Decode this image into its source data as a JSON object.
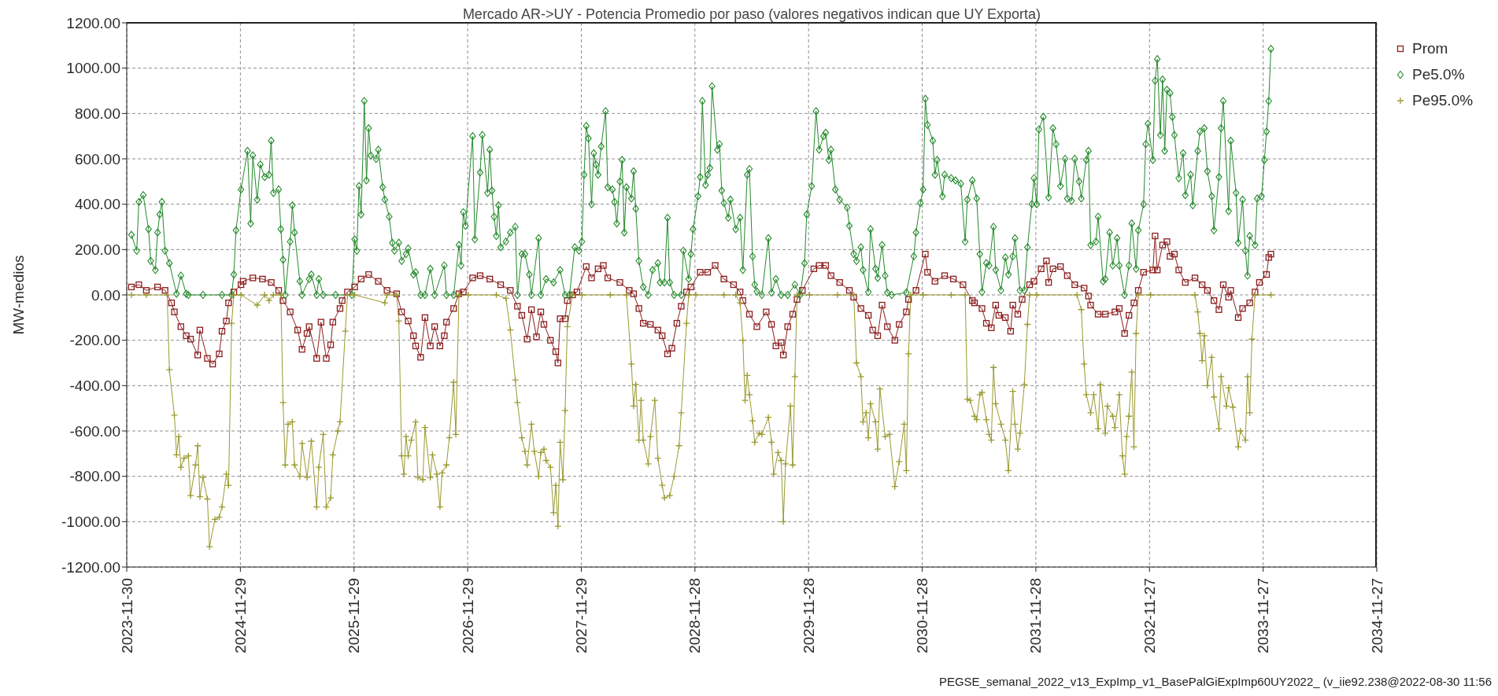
{
  "chart_data": {
    "type": "line",
    "title": "Mercado AR->UY - Potencia Promedio por paso (valores negativos indican que UY Exporta)",
    "ylabel": "MW-medios",
    "annotations": [
      "PEGSE_semanal_2022_v13_ExpImp_v1_BasePalGiExpImp60UY2022_ (v_iie92.238@2022-08-30 11:56"
    ],
    "xlim": [
      "2023-11-30",
      "2034-11-27"
    ],
    "xticks": [
      "2023-11-30",
      "2024-11-29",
      "2025-11-29",
      "2026-11-29",
      "2027-11-29",
      "2028-11-28",
      "2029-11-28",
      "2030-11-28",
      "2031-11-28",
      "2032-11-27",
      "2033-11-27",
      "2034-11-27"
    ],
    "ylim": [
      -1200,
      1200
    ],
    "yticks": [
      {
        "value": -1200,
        "label": "-1200.00"
      },
      {
        "value": -1000,
        "label": "-1000.00"
      },
      {
        "value": -800,
        "label": "-800.00"
      },
      {
        "value": -600,
        "label": "-600.00"
      },
      {
        "value": -400,
        "label": "-400.00"
      },
      {
        "value": -200,
        "label": "-200.00"
      },
      {
        "value": 0,
        "label": "0.00"
      },
      {
        "value": 200,
        "label": "200.00"
      },
      {
        "value": 400,
        "label": "400.00"
      },
      {
        "value": 600,
        "label": "600.00"
      },
      {
        "value": 800,
        "label": "800.00"
      },
      {
        "value": 1000,
        "label": "1000.00"
      },
      {
        "value": 1200,
        "label": "1200.00"
      }
    ],
    "grid": true,
    "legend": "top right",
    "series": [
      {
        "name": "Prom",
        "color": "#8b1c1c",
        "marker": "square",
        "x": [
          "2023-12-15",
          "2024-01-08",
          "2024-02-01",
          "2024-03-08",
          "2024-04-01",
          "2024-04-22",
          "2024-05-01",
          "2024-05-22",
          "2024-06-08",
          "2024-06-22",
          "2024-07-15",
          "2024-07-22",
          "2024-08-15",
          "2024-09-01",
          "2024-09-22",
          "2024-10-01",
          "2024-10-15",
          "2024-10-22",
          "2024-11-08",
          "2024-12-01",
          "2024-12-08",
          "2025-01-08",
          "2025-02-08",
          "2025-03-08",
          "2025-04-01",
          "2025-04-15",
          "2025-05-08",
          "2025-06-01",
          "2025-06-15",
          "2025-07-01",
          "2025-07-08",
          "2025-08-01",
          "2025-08-15",
          "2025-09-01",
          "2025-09-15",
          "2025-09-22",
          "2025-10-15",
          "2025-10-22",
          "2025-11-08",
          "2025-12-01",
          "2025-12-22",
          "2026-01-15",
          "2026-02-15",
          "2026-03-15",
          "2026-04-15",
          "2026-05-01",
          "2026-05-22",
          "2026-06-08",
          "2026-06-15",
          "2026-07-01",
          "2026-07-15",
          "2026-08-01",
          "2026-08-15",
          "2026-09-01",
          "2026-09-15",
          "2026-09-22",
          "2026-10-15",
          "2026-11-01",
          "2026-11-15",
          "2026-12-15",
          "2027-01-08",
          "2027-02-08",
          "2027-03-15",
          "2027-04-15",
          "2027-05-08",
          "2027-05-22",
          "2027-06-08",
          "2027-06-22",
          "2027-07-08",
          "2027-07-22",
          "2027-08-01",
          "2027-08-22",
          "2027-09-08",
          "2027-09-15",
          "2027-09-22",
          "2027-10-08",
          "2027-10-15",
          "2027-11-01",
          "2027-11-15",
          "2027-12-15",
          "2028-01-01",
          "2028-01-22",
          "2028-02-08",
          "2028-02-22",
          "2028-04-01",
          "2028-05-01",
          "2028-05-15",
          "2028-06-01",
          "2028-06-15",
          "2028-07-08",
          "2028-08-01",
          "2028-08-15",
          "2028-09-01",
          "2028-09-15",
          "2028-10-01",
          "2028-10-15",
          "2028-11-01",
          "2028-11-15",
          "2028-12-15",
          "2029-01-08",
          "2029-02-01",
          "2029-03-01",
          "2029-04-01",
          "2029-04-22",
          "2029-05-01",
          "2029-05-22",
          "2029-06-15",
          "2029-07-15",
          "2029-08-01",
          "2029-08-15",
          "2029-09-01",
          "2029-09-08",
          "2029-09-22",
          "2029-10-08",
          "2029-10-22",
          "2029-11-08",
          "2029-12-15",
          "2030-01-01",
          "2030-01-22",
          "2030-02-08",
          "2030-03-08",
          "2030-04-08",
          "2030-04-22",
          "2030-05-15",
          "2030-06-08",
          "2030-06-22",
          "2030-07-08",
          "2030-07-22",
          "2030-08-08",
          "2030-09-01",
          "2030-09-15",
          "2030-10-08",
          "2030-10-15",
          "2030-11-08",
          "2030-12-08",
          "2030-12-15",
          "2031-01-08",
          "2031-02-08",
          "2031-03-08",
          "2031-04-08",
          "2031-05-08",
          "2031-05-15",
          "2031-06-08",
          "2031-06-22",
          "2031-07-08",
          "2031-07-22",
          "2031-08-01",
          "2031-08-22",
          "2031-09-08",
          "2031-09-15",
          "2031-10-01",
          "2031-10-15",
          "2031-11-08",
          "2031-11-22",
          "2031-12-15",
          "2032-01-01",
          "2032-01-08",
          "2032-01-22",
          "2032-02-15",
          "2032-03-08",
          "2032-04-01",
          "2032-05-01",
          "2032-05-15",
          "2032-05-22",
          "2032-06-15",
          "2032-07-08",
          "2032-08-08",
          "2032-08-22",
          "2032-09-08",
          "2032-09-22",
          "2032-10-08",
          "2032-10-22",
          "2032-11-08",
          "2032-12-08",
          "2032-12-15",
          "2032-12-22",
          "2033-01-08",
          "2033-01-22",
          "2033-02-01",
          "2033-02-15",
          "2033-03-01",
          "2033-03-22",
          "2033-04-22",
          "2033-05-15",
          "2033-06-01",
          "2033-06-22",
          "2033-07-08",
          "2033-07-22",
          "2033-08-08",
          "2033-08-15",
          "2033-09-08",
          "2033-09-22",
          "2033-10-15",
          "2033-11-01",
          "2033-11-15",
          "2033-12-08",
          "2033-12-15",
          "2033-12-22"
        ],
        "values": [
          35,
          45,
          20,
          35,
          20,
          -35,
          -75,
          -140,
          -180,
          -195,
          -265,
          -155,
          -280,
          -305,
          -260,
          -160,
          -115,
          -35,
          13,
          45,
          60,
          75,
          70,
          55,
          20,
          -25,
          -75,
          -155,
          -240,
          -170,
          -140,
          -280,
          -120,
          -280,
          -220,
          -120,
          -60,
          -25,
          13,
          35,
          70,
          90,
          60,
          20,
          5,
          -75,
          -115,
          -180,
          -225,
          -275,
          -100,
          -225,
          -140,
          -225,
          -180,
          -120,
          -60,
          5,
          13,
          75,
          85,
          70,
          45,
          20,
          -50,
          -90,
          -195,
          -65,
          -185,
          -75,
          -130,
          -200,
          -250,
          -300,
          -105,
          -105,
          -25,
          0,
          13,
          125,
          75,
          115,
          130,
          75,
          55,
          20,
          5,
          -60,
          -125,
          -130,
          -155,
          -180,
          -260,
          -235,
          -125,
          -50,
          13,
          35,
          100,
          100,
          130,
          70,
          45,
          13,
          -25,
          -85,
          -140,
          -75,
          -130,
          -225,
          -210,
          -265,
          -140,
          -85,
          -20,
          20,
          115,
          130,
          130,
          85,
          55,
          20,
          -10,
          -60,
          -90,
          -155,
          -180,
          -45,
          -140,
          -200,
          -130,
          -75,
          -20,
          20,
          180,
          100,
          60,
          85,
          70,
          45,
          -25,
          -35,
          -60,
          -125,
          -145,
          -45,
          -90,
          -100,
          -160,
          -45,
          -85,
          -20,
          45,
          60,
          115,
          150,
          55,
          115,
          125,
          85,
          45,
          30,
          -5,
          -45,
          -85,
          -85,
          -75,
          -60,
          -170,
          -90,
          -35,
          20,
          100,
          110,
          260,
          110,
          220,
          235,
          170,
          180,
          110,
          55,
          75,
          45,
          20,
          -25,
          -65,
          45,
          -10,
          20,
          -100,
          -60,
          -35,
          13,
          55,
          90,
          165,
          180
        ]
      },
      {
        "name": "Pe5.0%",
        "color": "#23892a",
        "marker": "diamond",
        "x": [
          "2023-12-15",
          "2024-01-01",
          "2024-01-08",
          "2024-01-22",
          "2024-02-08",
          "2024-02-15",
          "2024-03-01",
          "2024-03-08",
          "2024-03-15",
          "2024-03-22",
          "2024-04-01",
          "2024-04-15",
          "2024-05-08",
          "2024-05-22",
          "2024-06-08",
          "2024-06-15",
          "2024-08-01",
          "2024-10-01",
          "2024-11-01",
          "2024-11-08",
          "2024-11-15",
          "2024-12-01",
          "2024-12-22",
          "2025-01-01",
          "2025-01-08",
          "2025-01-22",
          "2025-02-01",
          "2025-02-15",
          "2025-03-01",
          "2025-03-08",
          "2025-03-15",
          "2025-04-01",
          "2025-04-08",
          "2025-04-15",
          "2025-04-22",
          "2025-05-08",
          "2025-05-15",
          "2025-05-22",
          "2025-06-08",
          "2025-06-15",
          "2025-07-08",
          "2025-07-15",
          "2025-08-01",
          "2025-08-08",
          "2025-08-22",
          "2025-10-01",
          "2025-11-22",
          "2025-12-01",
          "2025-12-08",
          "2025-12-15",
          "2025-12-22",
          "2026-01-01",
          "2026-01-08",
          "2026-01-15",
          "2026-01-22",
          "2026-02-08",
          "2026-02-15",
          "2026-03-01",
          "2026-03-08",
          "2026-03-22",
          "2026-04-01",
          "2026-04-08",
          "2026-04-22",
          "2026-05-01",
          "2026-05-15",
          "2026-05-22",
          "2026-06-08",
          "2026-06-15",
          "2026-07-01",
          "2026-07-15",
          "2026-08-01",
          "2026-08-15",
          "2026-09-15",
          "2026-09-22",
          "2026-10-15",
          "2026-11-01",
          "2026-11-08",
          "2026-11-15",
          "2026-11-22",
          "2026-12-15",
          "2026-12-22",
          "2027-01-08",
          "2027-01-15",
          "2027-02-01",
          "2027-02-08",
          "2027-02-15",
          "2027-02-22",
          "2027-03-01",
          "2027-03-08",
          "2027-03-15",
          "2027-04-01",
          "2027-04-15",
          "2027-05-01",
          "2027-05-08",
          "2027-05-22",
          "2027-06-01",
          "2027-06-15",
          "2027-06-22",
          "2027-07-15",
          "2027-07-22",
          "2027-08-08",
          "2027-09-01",
          "2027-09-22",
          "2027-10-08",
          "2027-10-22",
          "2027-11-08",
          "2027-11-22",
          "2027-12-01",
          "2027-12-08",
          "2027-12-15",
          "2027-12-22",
          "2028-01-01",
          "2028-01-08",
          "2028-01-15",
          "2028-01-22",
          "2028-02-01",
          "2028-02-15",
          "2028-02-22",
          "2028-03-08",
          "2028-03-15",
          "2028-03-22",
          "2028-04-01",
          "2028-04-08",
          "2028-04-15",
          "2028-04-22",
          "2028-05-08",
          "2028-05-15",
          "2028-05-22",
          "2028-06-01",
          "2028-06-15",
          "2028-07-01",
          "2028-07-15",
          "2028-08-01",
          "2028-08-08",
          "2028-08-22",
          "2028-09-01",
          "2028-09-08",
          "2028-09-22",
          "2028-10-15",
          "2028-10-22",
          "2028-11-08",
          "2028-11-15",
          "2028-11-22",
          "2028-12-08",
          "2028-12-15",
          "2028-12-22",
          "2029-01-01",
          "2029-01-08",
          "2029-01-15",
          "2029-01-22",
          "2029-02-08",
          "2029-02-15",
          "2029-02-22",
          "2029-03-01",
          "2029-03-15",
          "2029-03-22",
          "2029-04-08",
          "2029-04-22",
          "2029-05-01",
          "2029-05-15",
          "2029-05-22",
          "2029-06-01",
          "2029-06-08",
          "2029-06-15",
          "2029-07-01",
          "2029-07-22",
          "2029-08-01",
          "2029-08-15",
          "2029-09-01",
          "2029-09-22",
          "2029-10-15",
          "2029-11-01",
          "2029-11-15",
          "2029-11-22",
          "2029-12-08",
          "2029-12-22",
          "2030-01-01",
          "2030-01-15",
          "2030-01-22",
          "2030-02-01",
          "2030-02-08",
          "2030-02-22",
          "2030-03-08",
          "2030-04-01",
          "2030-04-08",
          "2030-04-22",
          "2030-05-01",
          "2030-05-15",
          "2030-05-22",
          "2030-06-08",
          "2030-06-15",
          "2030-07-01",
          "2030-07-08",
          "2030-07-22",
          "2030-08-01",
          "2030-08-08",
          "2030-08-22",
          "2030-10-08",
          "2030-11-01",
          "2030-11-08",
          "2030-11-22",
          "2030-12-01",
          "2030-12-08",
          "2030-12-15",
          "2031-01-01",
          "2031-01-08",
          "2031-01-15",
          "2031-02-01",
          "2031-02-08",
          "2031-03-01",
          "2031-03-15",
          "2031-04-01",
          "2031-04-15",
          "2031-04-22",
          "2031-05-08",
          "2031-05-22",
          "2031-06-01",
          "2031-06-08",
          "2031-06-22",
          "2031-07-01",
          "2031-07-15",
          "2031-07-22",
          "2031-08-08",
          "2031-08-22",
          "2031-09-01",
          "2031-09-15",
          "2031-09-22",
          "2031-10-08",
          "2031-10-22",
          "2031-11-01",
          "2031-11-15",
          "2031-11-22",
          "2031-12-01",
          "2031-12-08",
          "2031-12-22",
          "2032-01-08",
          "2032-01-22",
          "2032-02-01",
          "2032-02-15",
          "2032-03-01",
          "2032-03-08",
          "2032-03-22",
          "2032-04-01",
          "2032-04-15",
          "2032-04-22",
          "2032-05-08",
          "2032-05-15",
          "2032-05-22",
          "2032-06-08",
          "2032-06-15",
          "2032-07-01",
          "2032-07-08",
          "2032-07-22",
          "2032-08-01",
          "2032-08-15",
          "2032-08-22",
          "2032-09-08",
          "2032-09-22",
          "2032-10-01",
          "2032-10-15",
          "2032-10-22",
          "2032-11-08",
          "2032-11-15",
          "2032-11-22",
          "2032-12-08",
          "2032-12-15",
          "2032-12-22",
          "2033-01-01",
          "2033-01-08",
          "2033-01-15",
          "2033-01-22",
          "2033-02-01",
          "2033-02-08",
          "2033-02-15",
          "2033-03-01",
          "2033-03-15",
          "2033-03-22",
          "2033-04-08",
          "2033-04-15",
          "2033-05-01",
          "2033-05-08",
          "2033-05-22",
          "2033-06-01",
          "2033-06-15",
          "2033-06-22",
          "2033-07-08",
          "2033-07-15",
          "2033-07-22",
          "2033-08-08",
          "2033-08-15",
          "2033-09-01",
          "2033-09-08",
          "2033-09-22",
          "2033-10-01",
          "2033-10-08",
          "2033-10-15",
          "2033-11-01",
          "2033-11-08",
          "2033-11-22",
          "2033-12-01",
          "2033-12-08",
          "2033-12-15",
          "2033-12-22"
        ],
        "values": [
          265,
          195,
          410,
          440,
          290,
          150,
          110,
          275,
          355,
          410,
          195,
          140,
          5,
          85,
          5,
          0,
          0,
          0,
          0,
          90,
          285,
          465,
          635,
          315,
          615,
          420,
          575,
          520,
          530,
          680,
          450,
          465,
          290,
          155,
          0,
          235,
          395,
          275,
          60,
          0,
          70,
          90,
          0,
          70,
          0,
          0,
          0,
          245,
          195,
          480,
          355,
          855,
          505,
          735,
          615,
          600,
          640,
          475,
          420,
          345,
          230,
          195,
          230,
          150,
          180,
          205,
          90,
          100,
          0,
          0,
          115,
          0,
          130,
          0,
          0,
          220,
          130,
          365,
          305,
          700,
          245,
          540,
          705,
          450,
          640,
          460,
          345,
          260,
          395,
          210,
          235,
          275,
          300,
          0,
          180,
          180,
          90,
          0,
          250,
          0,
          70,
          55,
          110,
          0,
          0,
          210,
          195,
          235,
          530,
          745,
          690,
          400,
          625,
          575,
          530,
          655,
          810,
          475,
          465,
          410,
          315,
          500,
          595,
          275,
          475,
          425,
          545,
          380,
          150,
          35,
          0,
          110,
          140,
          55,
          55,
          340,
          55,
          0,
          0,
          195,
          70,
          180,
          290,
          435,
          520,
          855,
          485,
          530,
          560,
          920,
          640,
          665,
          460,
          405,
          340,
          420,
          290,
          340,
          110,
          530,
          555,
          170,
          45,
          15,
          0,
          250,
          10,
          70,
          0,
          0,
          45,
          0,
          140,
          355,
          480,
          810,
          640,
          700,
          715,
          595,
          640,
          465,
          420,
          385,
          305,
          180,
          150,
          210,
          110,
          13,
          290,
          115,
          75,
          220,
          85,
          10,
          0,
          10,
          170,
          275,
          405,
          465,
          865,
          750,
          680,
          530,
          595,
          435,
          530,
          515,
          505,
          490,
          235,
          420,
          505,
          425,
          180,
          13,
          140,
          130,
          300,
          110,
          20,
          165,
          90,
          170,
          250,
          20,
          20,
          210,
          400,
          515,
          400,
          730,
          785,
          430,
          735,
          665,
          480,
          600,
          425,
          415,
          600,
          500,
          425,
          595,
          635,
          220,
          235,
          345,
          60,
          70,
          275,
          130,
          250,
          130,
          0,
          130,
          315,
          115,
          285,
          400,
          665,
          755,
          595,
          945,
          1040,
          705,
          950,
          635,
          905,
          890,
          785,
          705,
          515,
          625,
          440,
          530,
          395,
          635,
          720,
          735,
          545,
          435,
          285,
          520,
          735,
          855,
          370,
          680,
          450,
          230,
          420,
          195,
          85,
          260,
          220,
          425,
          435,
          595,
          720,
          855,
          1085
        ]
      },
      {
        "name": "Pe95.0%",
        "color": "#9a9a30",
        "marker": "cross",
        "x": [
          "2023-12-15",
          "2024-02-01",
          "2024-04-08",
          "2024-04-15",
          "2024-05-01",
          "2024-05-08",
          "2024-05-15",
          "2024-05-22",
          "2024-06-01",
          "2024-06-15",
          "2024-06-22",
          "2024-07-08",
          "2024-07-15",
          "2024-07-22",
          "2024-08-01",
          "2024-08-15",
          "2024-08-22",
          "2024-09-08",
          "2024-09-22",
          "2024-10-01",
          "2024-10-15",
          "2024-10-22",
          "2024-11-01",
          "2024-11-08",
          "2024-12-01",
          "2025-01-22",
          "2025-02-15",
          "2025-03-01",
          "2025-03-15",
          "2025-04-08",
          "2025-04-15",
          "2025-04-22",
          "2025-05-01",
          "2025-05-15",
          "2025-05-22",
          "2025-06-08",
          "2025-06-15",
          "2025-07-01",
          "2025-07-15",
          "2025-08-01",
          "2025-08-08",
          "2025-08-22",
          "2025-09-01",
          "2025-09-15",
          "2025-09-22",
          "2025-10-08",
          "2025-10-15",
          "2025-11-01",
          "2025-11-08",
          "2025-12-01",
          "2026-03-08",
          "2026-03-15",
          "2026-04-15",
          "2026-04-22",
          "2026-05-01",
          "2026-05-08",
          "2026-05-15",
          "2026-05-22",
          "2026-06-01",
          "2026-06-15",
          "2026-06-22",
          "2026-07-08",
          "2026-07-15",
          "2026-08-01",
          "2026-08-08",
          "2026-08-22",
          "2026-09-01",
          "2026-09-08",
          "2026-09-22",
          "2026-10-01",
          "2026-10-15",
          "2026-10-22",
          "2026-11-01",
          "2026-12-01",
          "2027-03-01",
          "2027-04-01",
          "2027-04-15",
          "2027-05-01",
          "2027-05-08",
          "2027-05-22",
          "2027-06-01",
          "2027-06-08",
          "2027-06-22",
          "2027-07-01",
          "2027-07-15",
          "2027-07-22",
          "2027-08-01",
          "2027-08-08",
          "2027-08-22",
          "2027-09-01",
          "2027-09-08",
          "2027-09-15",
          "2027-09-22",
          "2027-10-01",
          "2027-10-08",
          "2027-10-15",
          "2027-11-01",
          "2027-12-01",
          "2028-03-01",
          "2028-04-22",
          "2028-05-08",
          "2028-05-15",
          "2028-05-22",
          "2028-06-01",
          "2028-06-08",
          "2028-06-15",
          "2028-07-01",
          "2028-07-08",
          "2028-07-22",
          "2028-08-01",
          "2028-08-15",
          "2028-08-22",
          "2028-09-08",
          "2028-09-22",
          "2028-10-08",
          "2028-10-15",
          "2028-11-01",
          "2028-11-08",
          "2028-12-01",
          "2029-03-01",
          "2029-04-08",
          "2029-04-22",
          "2029-05-01",
          "2029-05-08",
          "2029-05-15",
          "2029-05-22",
          "2029-06-01",
          "2029-06-08",
          "2029-06-22",
          "2029-07-01",
          "2029-07-22",
          "2029-08-01",
          "2029-08-08",
          "2029-08-22",
          "2029-09-01",
          "2029-09-08",
          "2029-09-15",
          "2029-10-01",
          "2029-10-08",
          "2029-10-15",
          "2029-10-22",
          "2029-12-01",
          "2030-03-01",
          "2030-04-22",
          "2030-05-01",
          "2030-05-15",
          "2030-05-22",
          "2030-06-01",
          "2030-06-08",
          "2030-06-15",
          "2030-07-01",
          "2030-07-08",
          "2030-07-15",
          "2030-08-01",
          "2030-08-15",
          "2030-09-01",
          "2030-09-15",
          "2030-10-01",
          "2030-10-08",
          "2030-10-15",
          "2030-10-22",
          "2030-12-01",
          "2031-03-01",
          "2031-04-15",
          "2031-04-22",
          "2031-05-01",
          "2031-05-15",
          "2031-05-22",
          "2031-06-01",
          "2031-06-08",
          "2031-06-22",
          "2031-07-01",
          "2031-07-08",
          "2031-07-15",
          "2031-07-22",
          "2031-08-08",
          "2031-08-22",
          "2031-09-01",
          "2031-09-15",
          "2031-09-22",
          "2031-10-01",
          "2031-10-08",
          "2031-10-22",
          "2031-11-01",
          "2031-11-08",
          "2031-12-01",
          "2032-04-08",
          "2032-04-22",
          "2032-05-01",
          "2032-05-08",
          "2032-05-22",
          "2032-06-01",
          "2032-06-15",
          "2032-06-22",
          "2032-07-08",
          "2032-07-15",
          "2032-08-01",
          "2032-08-08",
          "2032-08-22",
          "2032-09-01",
          "2032-09-08",
          "2032-09-15",
          "2032-09-22",
          "2032-10-01",
          "2032-10-08",
          "2032-10-15",
          "2032-10-22",
          "2032-12-01",
          "2033-04-22",
          "2033-05-01",
          "2033-05-08",
          "2033-05-15",
          "2033-05-22",
          "2033-06-01",
          "2033-06-15",
          "2033-06-22",
          "2033-07-08",
          "2033-07-15",
          "2033-08-01",
          "2033-08-08",
          "2033-08-22",
          "2033-09-08",
          "2033-09-15",
          "2033-10-01",
          "2033-10-08",
          "2033-10-15",
          "2033-10-22",
          "2033-11-01",
          "2033-12-22"
        ],
        "values": [
          0,
          0,
          0,
          -330,
          -530,
          -705,
          -625,
          -760,
          -720,
          -710,
          -885,
          -750,
          -665,
          -890,
          -805,
          -900,
          -1110,
          -990,
          -980,
          -935,
          -790,
          -840,
          -125,
          0,
          0,
          -45,
          0,
          -25,
          0,
          0,
          -475,
          -750,
          -570,
          -560,
          -750,
          -800,
          -655,
          -805,
          -645,
          -935,
          -760,
          -615,
          -935,
          -895,
          -705,
          -600,
          -560,
          -160,
          0,
          0,
          -35,
          0,
          0,
          -115,
          -710,
          -790,
          -625,
          -710,
          -640,
          -560,
          -805,
          -815,
          -585,
          -805,
          -705,
          -790,
          -935,
          -785,
          -750,
          -630,
          -385,
          -615,
          0,
          0,
          0,
          -15,
          -155,
          -375,
          -475,
          -630,
          -690,
          -750,
          -570,
          -690,
          -800,
          -695,
          -680,
          -730,
          -760,
          -960,
          -840,
          -1020,
          -650,
          -815,
          -510,
          -140,
          0,
          0,
          0,
          0,
          -305,
          -490,
          -395,
          -640,
          -465,
          -640,
          -745,
          -625,
          -465,
          -720,
          -840,
          -895,
          -885,
          -800,
          -665,
          -520,
          -125,
          0,
          0,
          0,
          0,
          -35,
          -200,
          -465,
          -355,
          -440,
          -555,
          -650,
          -610,
          -615,
          -540,
          -650,
          -790,
          -695,
          -730,
          -1000,
          -745,
          -490,
          -750,
          -360,
          0,
          0,
          0,
          0,
          -300,
          -360,
          -560,
          -520,
          -630,
          -480,
          -560,
          -680,
          -415,
          -625,
          -615,
          -845,
          -735,
          -570,
          -775,
          -260,
          0,
          0,
          0,
          0,
          -460,
          -465,
          -535,
          -550,
          -440,
          -430,
          -550,
          -615,
          -640,
          -320,
          -480,
          -570,
          -640,
          -775,
          -425,
          -570,
          -680,
          -610,
          -395,
          -130,
          0,
          0,
          0,
          -65,
          -305,
          -440,
          -520,
          -440,
          -590,
          -395,
          -610,
          -490,
          -535,
          -585,
          -440,
          -710,
          -790,
          -625,
          -535,
          -340,
          -670,
          -170,
          0,
          0,
          0,
          -75,
          -170,
          -290,
          -180,
          -400,
          -275,
          -450,
          -590,
          -360,
          -490,
          -410,
          -495,
          -670,
          -600,
          -640,
          -360,
          -520,
          -195,
          0,
          0
        ]
      }
    ]
  }
}
